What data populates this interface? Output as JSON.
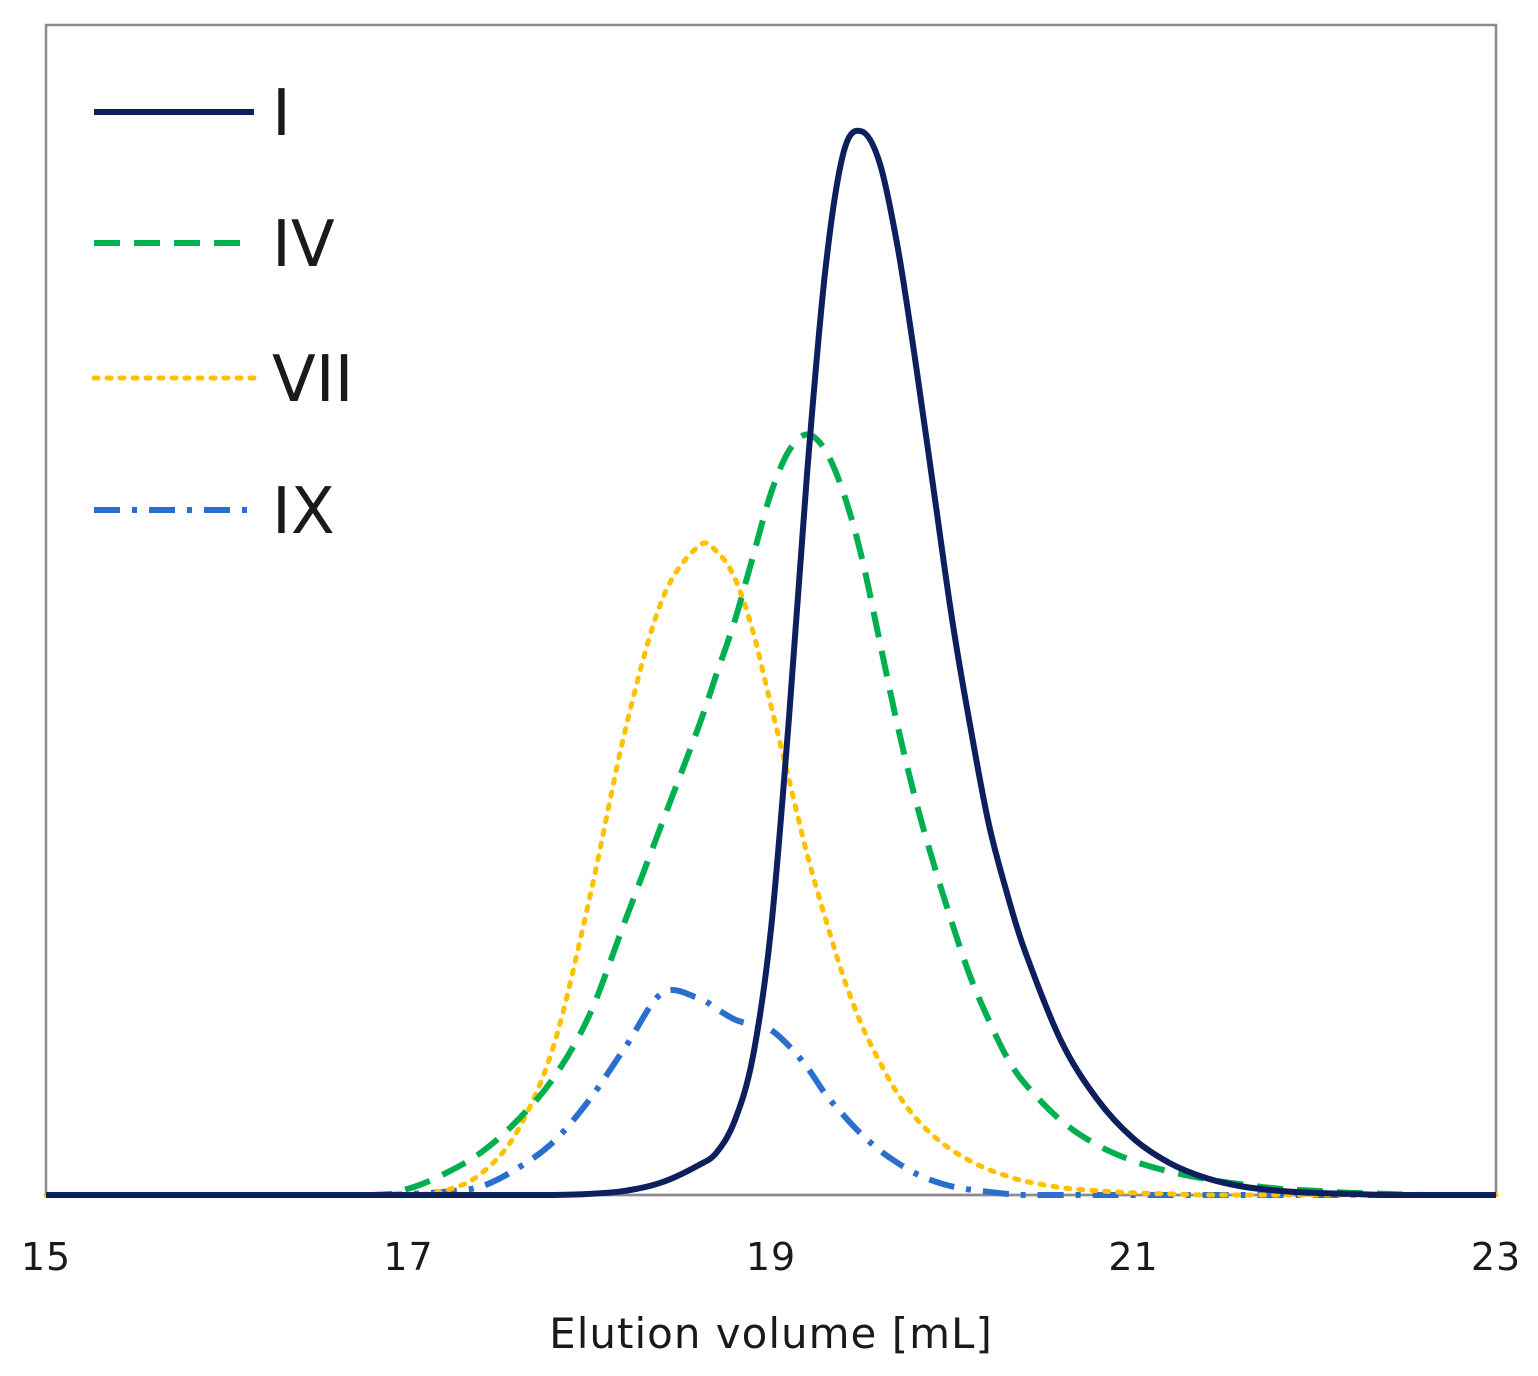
{
  "chart_data": {
    "type": "line",
    "title": "",
    "xlabel": "Elution volume [mL]",
    "ylabel": "",
    "xlim": [
      15,
      23
    ],
    "ylim": [
      0,
      1.1
    ],
    "x_ticks": [
      "15",
      "17",
      "19",
      "21",
      "23"
    ],
    "grid": false,
    "legend_position": "top-left",
    "x": [
      15.0,
      16.0,
      16.8,
      17.0,
      17.2,
      17.4,
      17.6,
      17.8,
      18.0,
      18.2,
      18.4,
      18.6,
      18.7,
      18.8,
      18.9,
      19.0,
      19.1,
      19.2,
      19.3,
      19.4,
      19.5,
      19.6,
      19.7,
      19.8,
      19.9,
      20.0,
      20.1,
      20.2,
      20.3,
      20.4,
      20.6,
      20.8,
      21.0,
      21.2,
      21.4,
      21.6,
      21.8,
      22.0,
      22.2,
      22.4,
      22.6,
      23.0
    ],
    "series": [
      {
        "name": "I",
        "color": "#0d1f5c",
        "dash": "solid",
        "values": [
          0,
          0,
          0,
          0,
          0,
          0,
          0,
          0,
          0.001,
          0.004,
          0.012,
          0.028,
          0.04,
          0.07,
          0.13,
          0.25,
          0.45,
          0.68,
          0.87,
          0.98,
          1.0,
          0.97,
          0.89,
          0.78,
          0.66,
          0.54,
          0.44,
          0.35,
          0.285,
          0.23,
          0.145,
          0.09,
          0.053,
          0.03,
          0.016,
          0.008,
          0.004,
          0.002,
          0.001,
          0,
          0,
          0
        ]
      },
      {
        "name": "IV",
        "color": "#00b050",
        "dash": "dashed",
        "values": [
          0,
          0,
          0,
          0.006,
          0.02,
          0.04,
          0.07,
          0.11,
          0.17,
          0.26,
          0.35,
          0.44,
          0.49,
          0.54,
          0.6,
          0.66,
          0.7,
          0.715,
          0.7,
          0.66,
          0.6,
          0.52,
          0.44,
          0.37,
          0.31,
          0.255,
          0.205,
          0.165,
          0.13,
          0.105,
          0.07,
          0.047,
          0.032,
          0.022,
          0.015,
          0.01,
          0.006,
          0.004,
          0.002,
          0.001,
          0,
          0
        ]
      },
      {
        "name": "VII",
        "color": "#ffc000",
        "dash": "dotted",
        "values": [
          0,
          0,
          0,
          0,
          0.004,
          0.02,
          0.06,
          0.14,
          0.28,
          0.44,
          0.56,
          0.61,
          0.605,
          0.58,
          0.53,
          0.46,
          0.39,
          0.32,
          0.26,
          0.205,
          0.16,
          0.125,
          0.095,
          0.072,
          0.055,
          0.042,
          0.032,
          0.024,
          0.018,
          0.013,
          0.007,
          0.004,
          0.002,
          0.001,
          0,
          0,
          0,
          0,
          0,
          0,
          0,
          0
        ]
      },
      {
        "name": "IX",
        "color": "#2a6fce",
        "dash": "dash-dot",
        "values": [
          0,
          0,
          0,
          0.001,
          0.003,
          0.008,
          0.025,
          0.05,
          0.09,
          0.14,
          0.19,
          0.185,
          0.175,
          0.165,
          0.16,
          0.155,
          0.14,
          0.12,
          0.095,
          0.075,
          0.057,
          0.042,
          0.03,
          0.02,
          0.013,
          0.008,
          0.005,
          0.003,
          0.001,
          0,
          0,
          0,
          0,
          0,
          0,
          0,
          0,
          0,
          0,
          0,
          0,
          0
        ]
      }
    ]
  }
}
